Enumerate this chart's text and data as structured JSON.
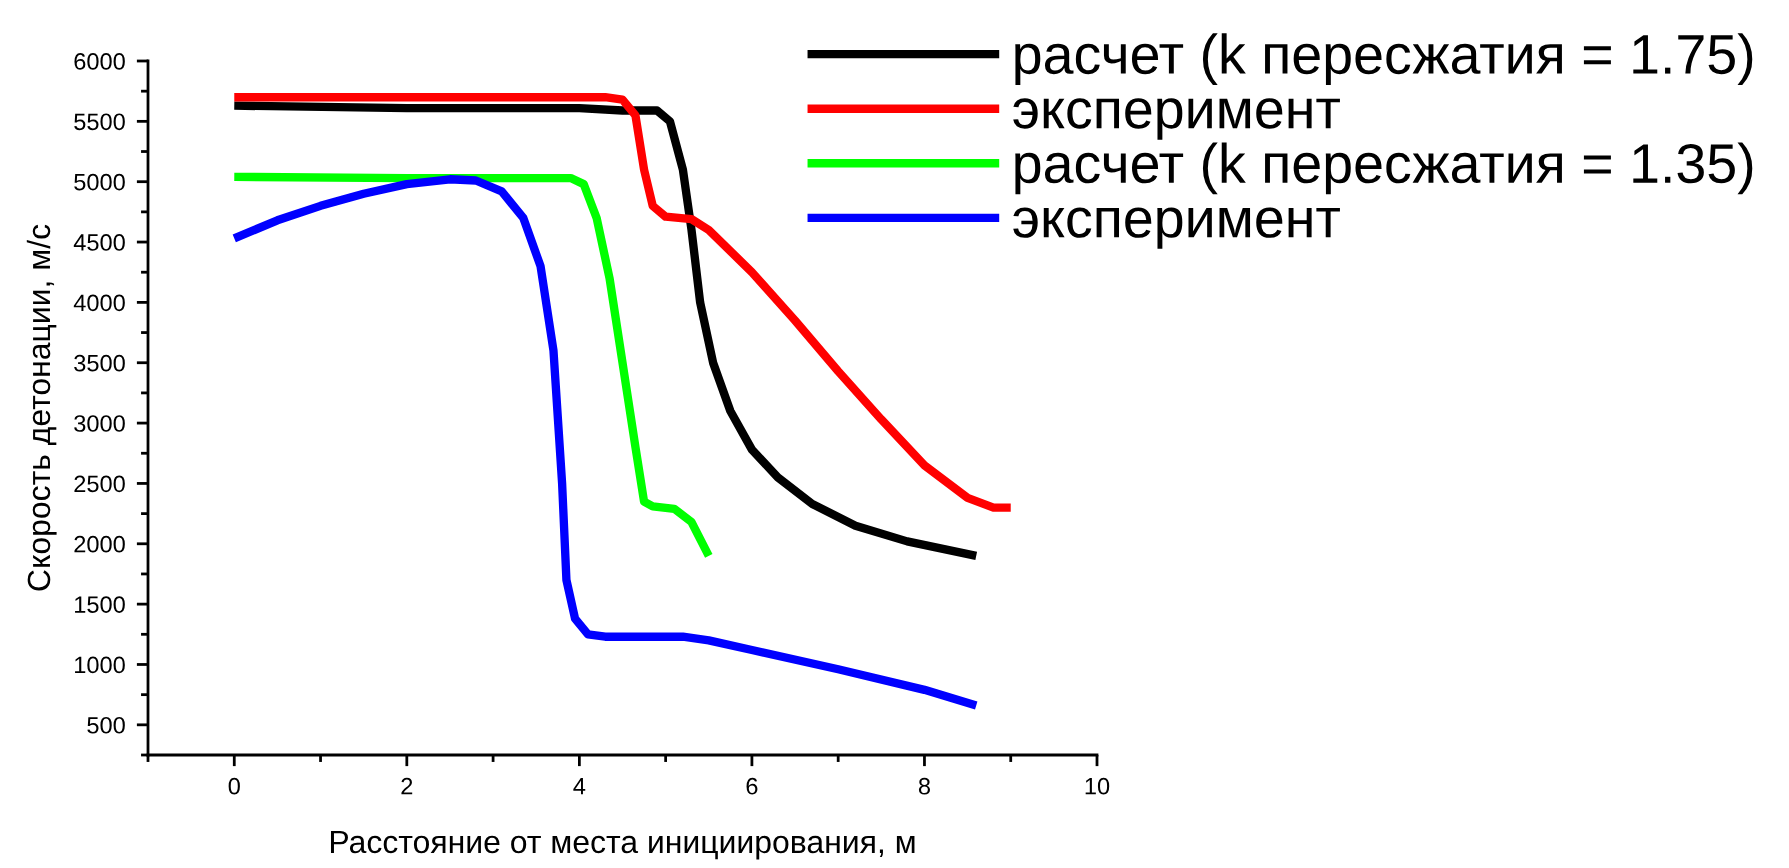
{
  "chart_data": {
    "type": "line",
    "xlabel": "Расстояние от места инициирования, м",
    "ylabel": "Скорость детонации, м/с",
    "xlim": [
      -1,
      10
    ],
    "xticks": [
      0,
      2,
      4,
      6,
      8,
      10
    ],
    "ylim": [
      250,
      6000
    ],
    "yticks": [
      500,
      1000,
      1500,
      2000,
      2500,
      3000,
      3500,
      4000,
      4500,
      5000,
      5500,
      6000
    ],
    "grid": false,
    "legend": "top right",
    "marker": "none",
    "line_style": "solid",
    "series": [
      {
        "name": "расчет (k пересжатия = 1.75)",
        "color": "#000000",
        "x": [
          0,
          2,
          4,
          4.5,
          4.9,
          5.05,
          5.2,
          5.3,
          5.4,
          5.55,
          5.75,
          6,
          6.3,
          6.7,
          7.2,
          7.8,
          8.6
        ],
        "values": [
          5630,
          5610,
          5610,
          5590,
          5590,
          5500,
          5100,
          4600,
          4000,
          3500,
          3100,
          2780,
          2550,
          2330,
          2150,
          2020,
          1900
        ]
      },
      {
        "name": "эксперимент",
        "color": "#ff0000",
        "x": [
          0,
          4.3,
          4.5,
          4.65,
          4.75,
          4.85,
          5.0,
          5.3,
          5.5,
          6,
          6.5,
          7,
          7.5,
          8,
          8.5,
          8.8,
          9.0
        ],
        "values": [
          5700,
          5700,
          5680,
          5550,
          5100,
          4800,
          4710,
          4690,
          4600,
          4250,
          3850,
          3430,
          3030,
          2650,
          2380,
          2300,
          2300
        ]
      },
      {
        "name": "расчет (k пересжатия = 1.35)",
        "color": "#00ff00",
        "x": [
          0,
          2,
          3.9,
          4.05,
          4.2,
          4.35,
          4.5,
          4.65,
          4.75,
          4.85,
          5.1,
          5.3,
          5.5
        ],
        "values": [
          5040,
          5030,
          5030,
          4980,
          4700,
          4200,
          3500,
          2800,
          2350,
          2310,
          2290,
          2180,
          1900
        ]
      },
      {
        "name": "эксперимент",
        "color": "#0000ff",
        "x": [
          0,
          0.5,
          1,
          1.5,
          2,
          2.5,
          2.8,
          3.1,
          3.35,
          3.55,
          3.7,
          3.8,
          3.85,
          3.95,
          4.1,
          4.3,
          5.2,
          5.5,
          6,
          7,
          8,
          8.6
        ],
        "values": [
          4530,
          4680,
          4800,
          4900,
          4980,
          5020,
          5010,
          4920,
          4700,
          4300,
          3600,
          2500,
          1700,
          1380,
          1250,
          1230,
          1230,
          1200,
          1120,
          960,
          790,
          660
        ]
      }
    ]
  }
}
